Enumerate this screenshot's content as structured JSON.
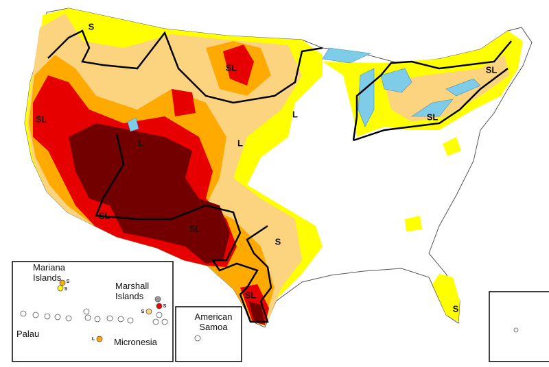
{
  "map_labels": [
    "S",
    "SL",
    "SL",
    "L",
    "L",
    "L",
    "SL",
    "SL",
    "SL",
    "SL",
    "S",
    "SL",
    "S"
  ],
  "pacific_inset": {
    "groups": [
      "Mariana Islands",
      "Marshall Islands",
      "Palau",
      "Micronesia"
    ],
    "markers": [
      "S",
      "S",
      "S",
      "S",
      "L"
    ]
  },
  "samoa_inset": {
    "title": "American Samoa"
  }
}
